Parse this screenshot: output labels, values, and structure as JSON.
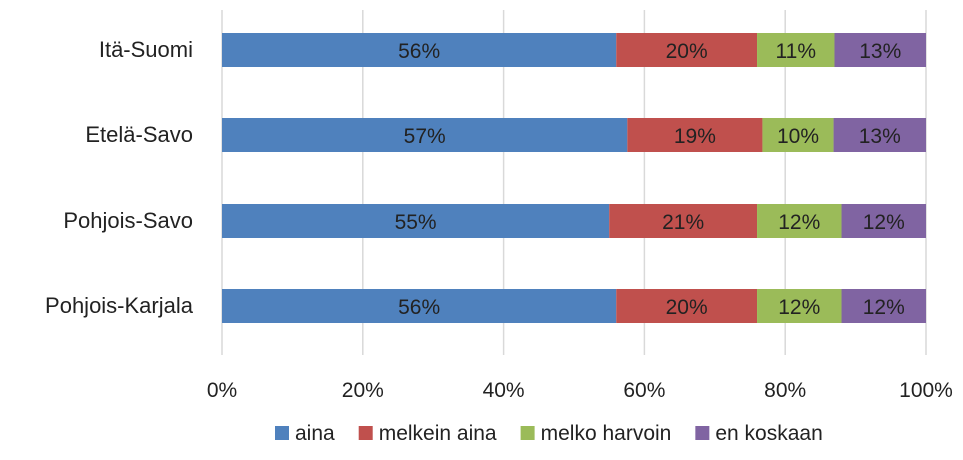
{
  "chart_data": {
    "type": "bar",
    "orientation": "horizontal",
    "stacked": "percent",
    "categories": [
      "Itä-Suomi",
      "Etelä-Savo",
      "Pohjois-Savo",
      "Pohjois-Karjala"
    ],
    "series": [
      {
        "name": "aina",
        "color": "#4f81bd",
        "values": [
          56,
          57,
          55,
          56
        ],
        "labels": [
          "56%",
          "57%",
          "55%",
          "56%"
        ]
      },
      {
        "name": "melkein aina",
        "color": "#c0504d",
        "values": [
          20,
          19,
          21,
          20
        ],
        "labels": [
          "20%",
          "19%",
          "21%",
          "20%"
        ]
      },
      {
        "name": "melko harvoin",
        "color": "#9bbb59",
        "values": [
          11,
          10,
          12,
          12
        ],
        "labels": [
          "11%",
          "10%",
          "12%",
          "12%"
        ]
      },
      {
        "name": "en koskaan",
        "color": "#8064a2",
        "values": [
          13,
          13,
          12,
          12
        ],
        "labels": [
          "13%",
          "13%",
          "12%",
          "12%"
        ]
      }
    ],
    "xlim": [
      0,
      100
    ],
    "x_ticks": [
      0,
      20,
      40,
      60,
      80,
      100
    ],
    "x_tick_labels": [
      "0%",
      "20%",
      "40%",
      "60%",
      "80%",
      "100%"
    ],
    "grid": true,
    "legend": "bottom"
  }
}
